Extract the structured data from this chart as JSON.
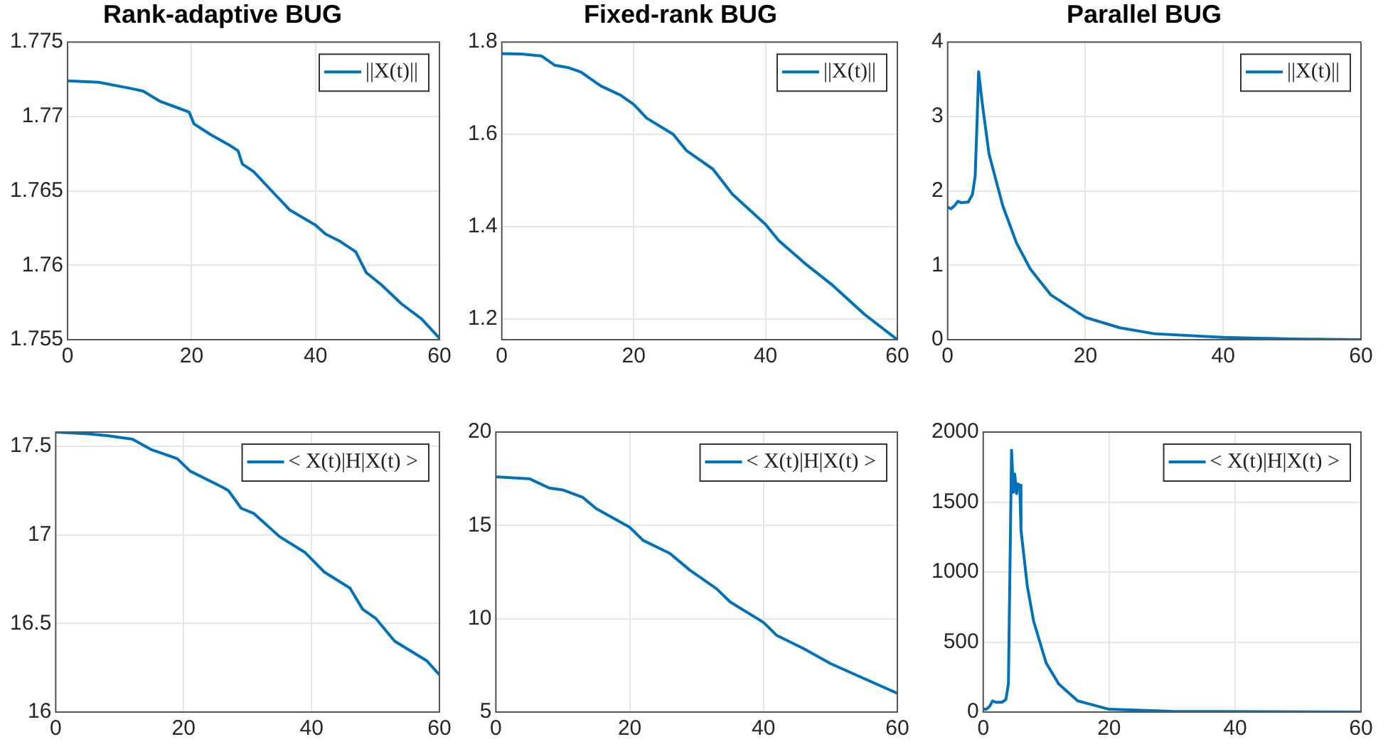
{
  "chart_data": [
    {
      "type": "line",
      "title": "Rank-adaptive BUG",
      "xlim": [
        0,
        60
      ],
      "xticks": [
        0,
        20,
        40,
        60
      ],
      "ylim": [
        1.755,
        1.775
      ],
      "yticks": [
        1.755,
        1.76,
        1.765,
        1.77,
        1.775
      ],
      "grid": true,
      "legend": "top right",
      "marker": "none",
      "line_style": "solid",
      "series": [
        {
          "name": "||X(t)||",
          "color": "#0072bd",
          "x": [
            0,
            5,
            10,
            12.2,
            15,
            19.6,
            20.4,
            23,
            26,
            27.5,
            28.2,
            30,
            32.7,
            35.9,
            40,
            41.6,
            44,
            46.5,
            48.2,
            50.6,
            53.9,
            57.1,
            60
          ],
          "values": [
            1.7724,
            1.7723,
            1.7719,
            1.7717,
            1.771,
            1.7703,
            1.7695,
            1.7688,
            1.7681,
            1.7677,
            1.7668,
            1.7663,
            1.7651,
            1.7637,
            1.7627,
            1.7621,
            1.7616,
            1.7609,
            1.7595,
            1.7587,
            1.7574,
            1.7564,
            1.7551
          ]
        }
      ]
    },
    {
      "type": "line",
      "title": "Fixed-rank BUG",
      "xlim": [
        0,
        60
      ],
      "xticks": [
        0,
        20,
        40,
        60
      ],
      "ylim": [
        1.155,
        1.8
      ],
      "yticks": [
        1.2,
        1.4,
        1.6,
        1.8
      ],
      "grid": true,
      "legend": "top right",
      "marker": "none",
      "line_style": "solid",
      "series": [
        {
          "name": "||X(t)||",
          "color": "#0072bd",
          "x": [
            0,
            3,
            6,
            8,
            10,
            12,
            15,
            18,
            20,
            22,
            26,
            28,
            32,
            35,
            40,
            42,
            46,
            50,
            55,
            60
          ],
          "values": [
            1.775,
            1.774,
            1.77,
            1.75,
            1.745,
            1.735,
            1.705,
            1.685,
            1.665,
            1.635,
            1.6,
            1.565,
            1.525,
            1.47,
            1.405,
            1.37,
            1.32,
            1.275,
            1.21,
            1.155
          ]
        }
      ]
    },
    {
      "type": "line",
      "title": "Parallel BUG",
      "xlim": [
        0,
        60
      ],
      "xticks": [
        0,
        20,
        40,
        60
      ],
      "ylim": [
        0,
        4
      ],
      "yticks": [
        0,
        1,
        2,
        3,
        4
      ],
      "grid": true,
      "legend": "top right",
      "marker": "none",
      "line_style": "solid",
      "series": [
        {
          "name": "||X(t)||",
          "color": "#0072bd",
          "x": [
            0,
            0.5,
            1,
            1.5,
            2,
            3,
            3.6,
            4,
            4.3,
            4.5,
            5,
            6,
            8,
            10,
            12,
            15,
            20,
            25,
            30,
            40,
            50,
            60
          ],
          "values": [
            1.78,
            1.76,
            1.8,
            1.86,
            1.84,
            1.85,
            1.95,
            2.2,
            3.0,
            3.6,
            3.2,
            2.5,
            1.8,
            1.3,
            0.95,
            0.6,
            0.3,
            0.16,
            0.08,
            0.03,
            0.01,
            0.0
          ]
        }
      ]
    },
    {
      "type": "line",
      "xlim": [
        0,
        60
      ],
      "xticks": [
        0,
        20,
        40,
        60
      ],
      "ylim": [
        16,
        17.58
      ],
      "yticks": [
        16,
        16.5,
        17,
        17.5
      ],
      "grid": true,
      "legend": "top right",
      "marker": "none",
      "line_style": "solid",
      "series": [
        {
          "name": "< X(t)|H|X(t) >",
          "color": "#0072bd",
          "x": [
            0,
            5,
            8,
            12,
            15,
            19,
            21,
            26,
            27,
            29,
            31,
            35,
            39,
            42,
            46,
            48,
            50,
            53,
            58,
            60
          ],
          "values": [
            17.58,
            17.57,
            17.56,
            17.54,
            17.48,
            17.43,
            17.36,
            17.27,
            17.25,
            17.15,
            17.12,
            16.99,
            16.9,
            16.79,
            16.7,
            16.58,
            16.53,
            16.4,
            16.29,
            16.21
          ]
        }
      ]
    },
    {
      "type": "line",
      "xlim": [
        0,
        60
      ],
      "xticks": [
        0,
        20,
        40,
        60
      ],
      "ylim": [
        5,
        20
      ],
      "yticks": [
        5,
        10,
        15,
        20
      ],
      "grid": true,
      "legend": "top right",
      "marker": "none",
      "line_style": "solid",
      "series": [
        {
          "name": "< X(t)|H|X(t) >",
          "color": "#0072bd",
          "x": [
            0,
            5,
            8,
            10,
            13,
            15,
            20,
            22,
            26,
            29,
            33,
            35,
            40,
            42,
            46,
            50,
            55,
            60
          ],
          "values": [
            17.6,
            17.5,
            17.0,
            16.9,
            16.5,
            15.9,
            14.9,
            14.2,
            13.5,
            12.6,
            11.6,
            10.9,
            9.8,
            9.1,
            8.4,
            7.6,
            6.8,
            6.0
          ]
        }
      ]
    },
    {
      "type": "line",
      "xlim": [
        0,
        60
      ],
      "xticks": [
        0,
        20,
        40,
        60
      ],
      "ylim": [
        0,
        2000
      ],
      "yticks": [
        0,
        500,
        1000,
        1500,
        2000
      ],
      "grid": true,
      "legend": "top right",
      "marker": "none",
      "line_style": "solid",
      "series": [
        {
          "name": "< X(t)|H|X(t) >",
          "color": "#0072bd",
          "x": [
            0,
            0.5,
            1,
            1.5,
            2,
            3,
            3.6,
            4,
            4.3,
            4.5,
            4.8,
            5,
            5.3,
            5.5,
            5.8,
            6,
            7,
            8,
            10,
            12,
            15,
            20,
            30,
            60
          ],
          "values": [
            20,
            20,
            40,
            80,
            70,
            70,
            90,
            200,
            1200,
            1870,
            1570,
            1700,
            1560,
            1630,
            1620,
            1300,
            900,
            650,
            350,
            200,
            80,
            20,
            5,
            0
          ]
        }
      ]
    }
  ]
}
